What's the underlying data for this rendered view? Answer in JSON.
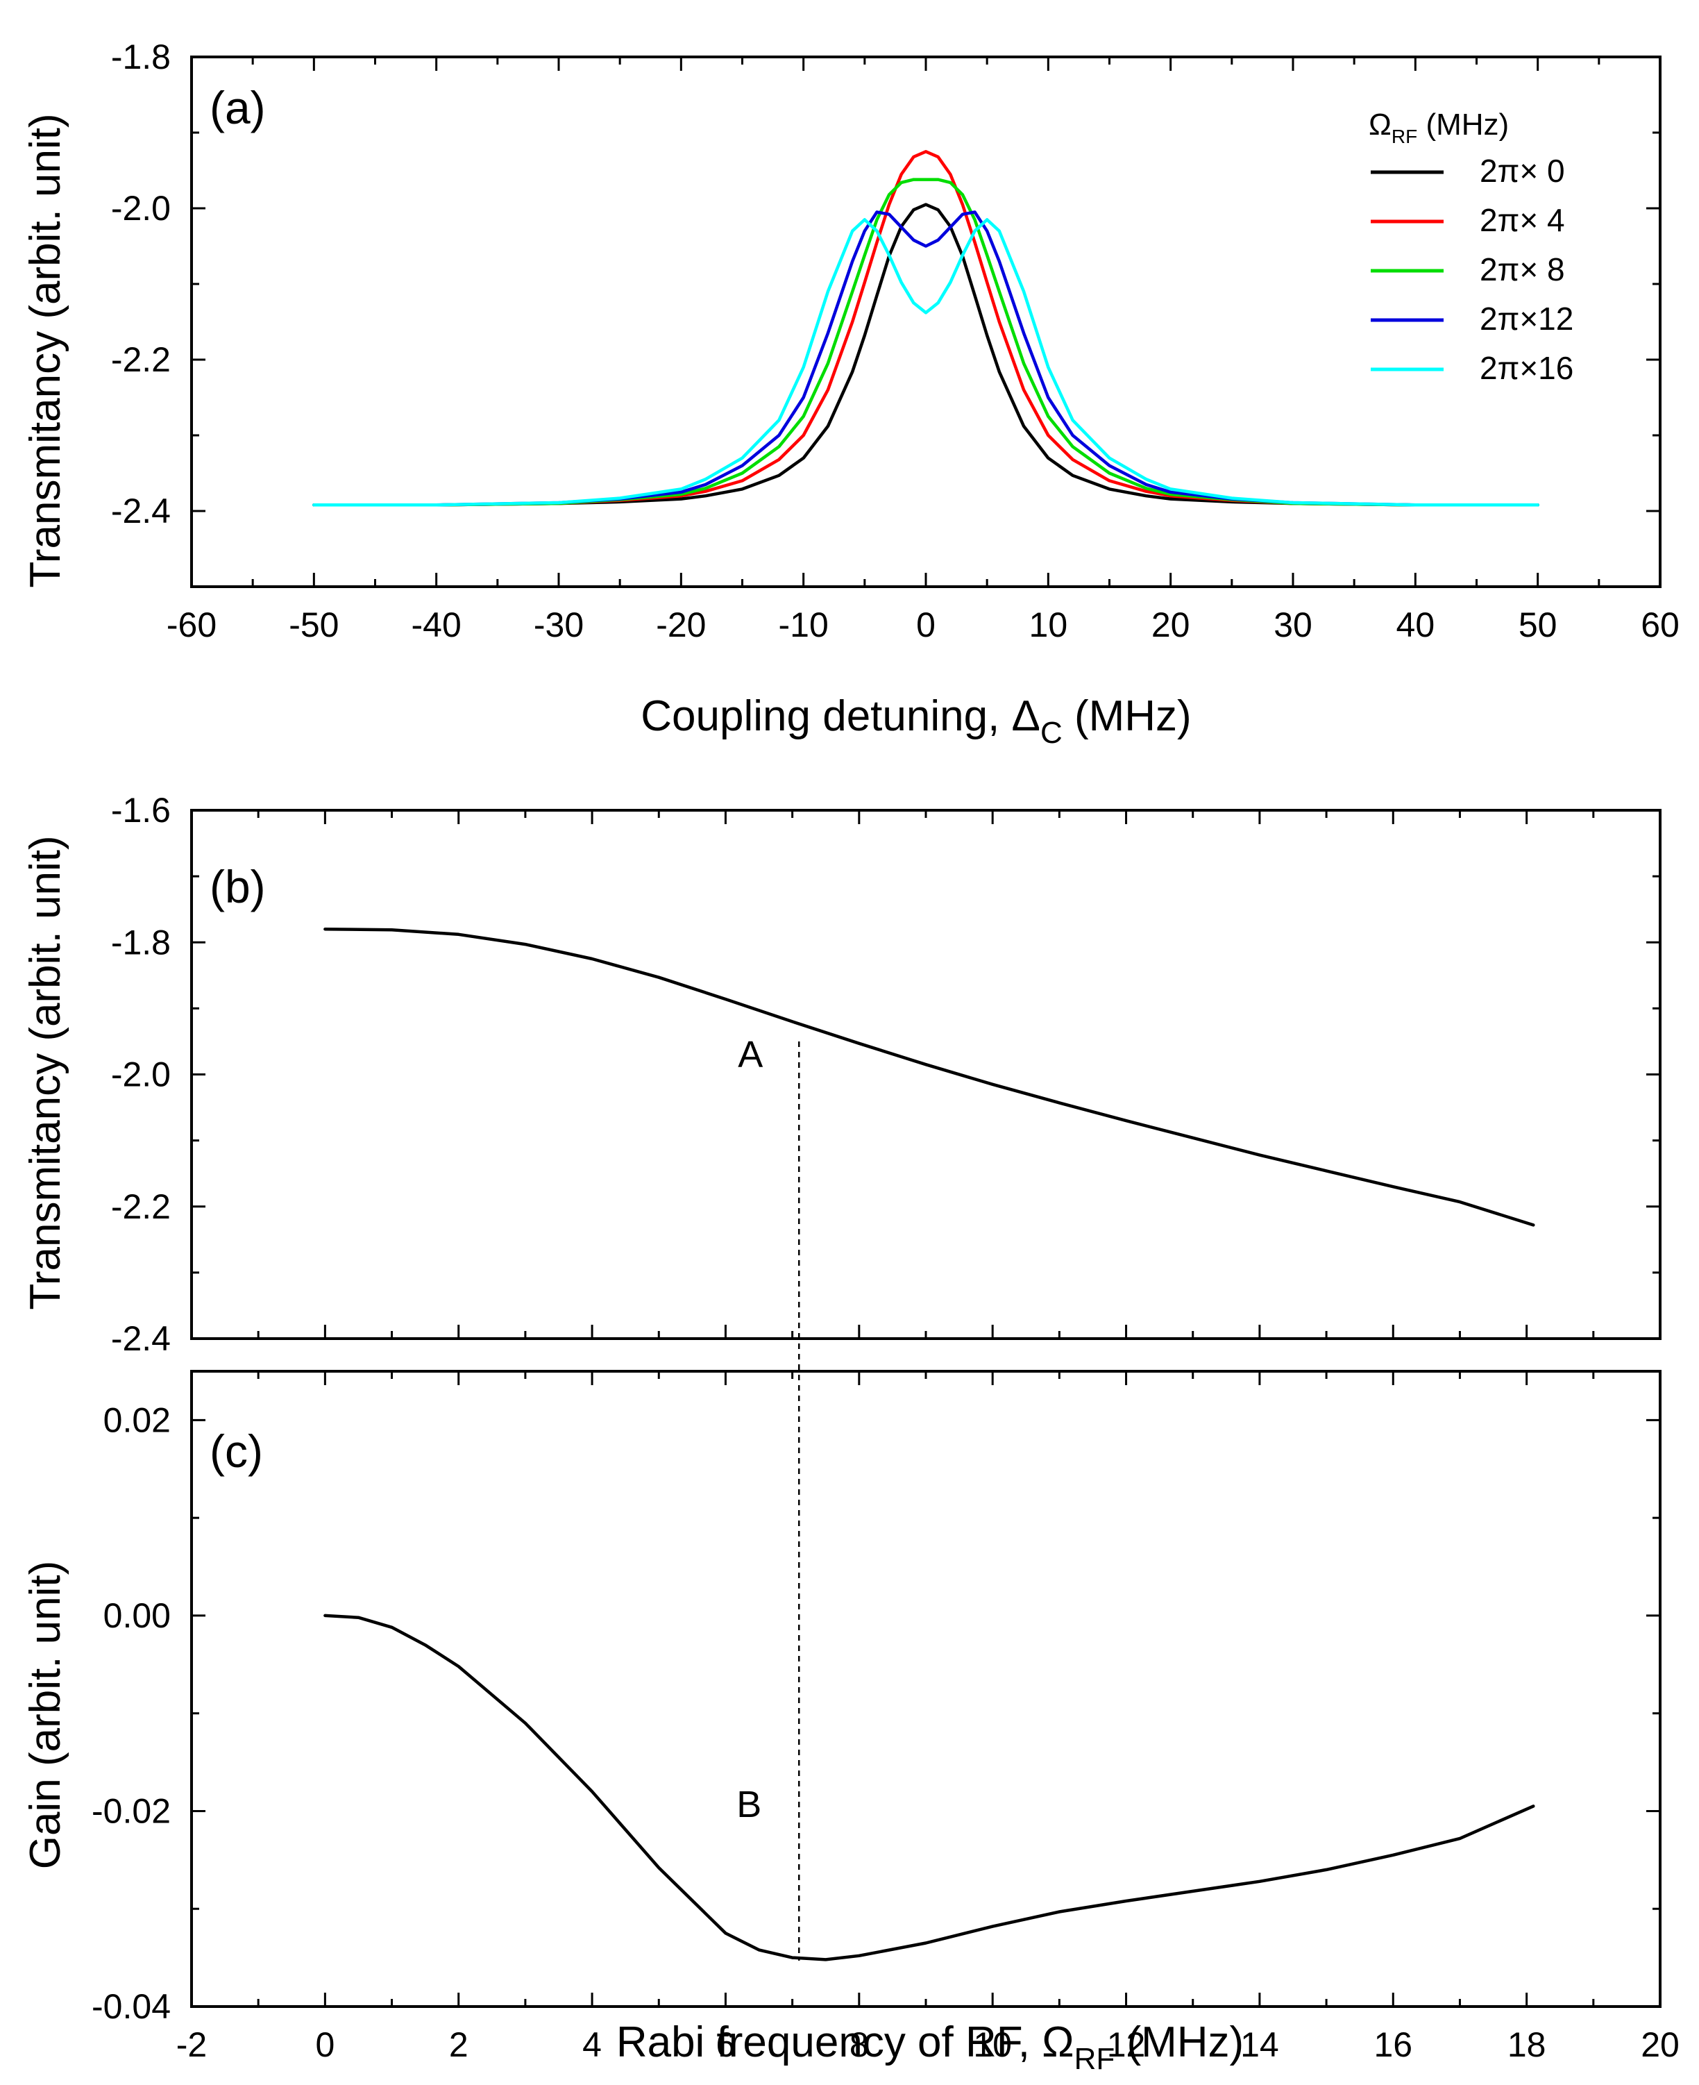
{
  "chart_data": [
    {
      "id": "a",
      "type": "line",
      "panel_label": "(a)",
      "title": "",
      "xlabel": "Coupling detuning, Δ",
      "xlabel_sub": "C",
      "xlabel_tail": " (MHz)",
      "ylabel": "Transmitancy (arbit. unit)",
      "xlim": [
        -60,
        60
      ],
      "ylim": [
        -2.5,
        -1.8
      ],
      "xticks": [
        -60,
        -50,
        -40,
        -30,
        -20,
        -10,
        0,
        10,
        20,
        30,
        40,
        50,
        60
      ],
      "xtick_labels": [
        "-60",
        "-50",
        "-40",
        "-30",
        "-20",
        "-10",
        "0",
        "10",
        "20",
        "30",
        "40",
        "50",
        "60"
      ],
      "yticks": [
        -2.4,
        -2.2,
        -2.0,
        -1.8
      ],
      "ytick_labels": [
        "-2.4",
        "-2.2",
        "-2.0",
        "-1.8"
      ],
      "legend_title": "Ω",
      "legend_title_sub": "RF",
      "legend_title_tail": " (MHz)",
      "legend_position": "top-right",
      "x": [
        -50,
        -40,
        -30,
        -25,
        -20,
        -18,
        -15,
        -12,
        -10,
        -8,
        -6,
        -5,
        -4,
        -3,
        -2,
        -1,
        0,
        1,
        2,
        3,
        4,
        5,
        6,
        8,
        10,
        12,
        15,
        18,
        20,
        25,
        30,
        40,
        50
      ],
      "series": [
        {
          "name": "2π× 0",
          "color": "#000000",
          "values": [
            -2.392,
            -2.392,
            -2.39,
            -2.388,
            -2.384,
            -2.38,
            -2.371,
            -2.353,
            -2.33,
            -2.288,
            -2.216,
            -2.168,
            -2.115,
            -2.063,
            -2.024,
            -2.002,
            -1.995,
            -2.002,
            -2.024,
            -2.063,
            -2.115,
            -2.168,
            -2.216,
            -2.288,
            -2.33,
            -2.353,
            -2.371,
            -2.38,
            -2.384,
            -2.388,
            -2.39,
            -2.392,
            -2.392
          ]
        },
        {
          "name": "2π× 4",
          "color": "#ff0000",
          "values": [
            -2.392,
            -2.392,
            -2.39,
            -2.386,
            -2.38,
            -2.374,
            -2.36,
            -2.332,
            -2.3,
            -2.24,
            -2.15,
            -2.098,
            -2.045,
            -1.995,
            -1.955,
            -1.932,
            -1.925,
            -1.932,
            -1.955,
            -1.995,
            -2.045,
            -2.098,
            -2.15,
            -2.24,
            -2.3,
            -2.332,
            -2.36,
            -2.374,
            -2.38,
            -2.386,
            -2.39,
            -2.392,
            -2.392
          ]
        },
        {
          "name": "2π× 8",
          "color": "#00dd00",
          "values": [
            -2.392,
            -2.392,
            -2.39,
            -2.385,
            -2.378,
            -2.37,
            -2.35,
            -2.315,
            -2.275,
            -2.205,
            -2.11,
            -2.062,
            -2.015,
            -1.982,
            -1.966,
            -1.962,
            -1.962,
            -1.962,
            -1.966,
            -1.982,
            -2.015,
            -2.062,
            -2.11,
            -2.205,
            -2.275,
            -2.315,
            -2.35,
            -2.37,
            -2.378,
            -2.385,
            -2.39,
            -2.392,
            -2.392
          ]
        },
        {
          "name": "2π×12",
          "color": "#0000dd",
          "values": [
            -2.392,
            -2.392,
            -2.389,
            -2.384,
            -2.375,
            -2.365,
            -2.34,
            -2.3,
            -2.25,
            -2.165,
            -2.07,
            -2.03,
            -2.005,
            -2.008,
            -2.025,
            -2.042,
            -2.05,
            -2.042,
            -2.025,
            -2.008,
            -2.005,
            -2.03,
            -2.07,
            -2.165,
            -2.25,
            -2.3,
            -2.34,
            -2.365,
            -2.375,
            -2.384,
            -2.389,
            -2.392,
            -2.392
          ]
        },
        {
          "name": "2π×16",
          "color": "#00ffff",
          "values": [
            -2.392,
            -2.392,
            -2.389,
            -2.383,
            -2.371,
            -2.358,
            -2.33,
            -2.28,
            -2.21,
            -2.11,
            -2.03,
            -2.015,
            -2.03,
            -2.062,
            -2.098,
            -2.125,
            -2.138,
            -2.125,
            -2.098,
            -2.062,
            -2.03,
            -2.015,
            -2.03,
            -2.11,
            -2.21,
            -2.28,
            -2.33,
            -2.358,
            -2.371,
            -2.383,
            -2.389,
            -2.392,
            -2.392
          ]
        }
      ]
    },
    {
      "id": "b",
      "type": "line",
      "panel_label": "(b)",
      "title": "",
      "xlabel": "",
      "ylabel": "Transmitancy (arbit. unit)",
      "xlim": [
        -2,
        20
      ],
      "ylim": [
        -2.4,
        -1.6
      ],
      "yticks": [
        -2.4,
        -2.2,
        -2.0,
        -1.8,
        -1.6
      ],
      "ytick_labels": [
        "-2.4",
        "-2.2",
        "-2.0",
        "-1.8",
        "-1.6"
      ],
      "marker": {
        "label": "A",
        "x": 7.1,
        "y": -1.95
      },
      "series": [
        {
          "name": "transmitancy",
          "color": "#000000",
          "x": [
            0,
            1,
            2,
            3,
            4,
            5,
            6,
            7,
            8,
            9,
            10,
            11,
            12,
            13,
            14,
            15,
            16,
            17,
            18.1
          ],
          "values": [
            -1.78,
            -1.781,
            -1.788,
            -1.803,
            -1.825,
            -1.853,
            -1.886,
            -1.92,
            -1.953,
            -1.985,
            -2.015,
            -2.043,
            -2.07,
            -2.096,
            -2.122,
            -2.146,
            -2.17,
            -2.193,
            -2.228
          ]
        }
      ]
    },
    {
      "id": "c",
      "type": "line",
      "panel_label": "(c)",
      "title": "",
      "xlabel": "Rabi frequency of RF, Ω",
      "xlabel_sub": "RF",
      "xlabel_tail": " (MHz)",
      "ylabel": "Gain (arbit. unit)",
      "xlim": [
        -2,
        20
      ],
      "ylim": [
        -0.04,
        0.025
      ],
      "xticks": [
        -2,
        0,
        2,
        4,
        6,
        8,
        10,
        12,
        14,
        16,
        18,
        20
      ],
      "xtick_labels": [
        "-2",
        "0",
        "2",
        "4",
        "6",
        "8",
        "10",
        "12",
        "14",
        "16",
        "18",
        "20"
      ],
      "yticks": [
        -0.04,
        -0.02,
        0.0,
        0.02
      ],
      "ytick_labels": [
        "-0.04",
        "-0.02",
        "0.00",
        "0.02"
      ],
      "marker": {
        "label": "B",
        "x": 7.1,
        "y": -0.0353
      },
      "series": [
        {
          "name": "gain",
          "color": "#000000",
          "x": [
            0,
            0.5,
            1,
            1.5,
            2,
            3,
            4,
            5,
            6,
            6.5,
            7,
            7.5,
            8,
            9,
            10,
            11,
            12,
            13,
            14,
            15,
            16,
            17,
            18.1
          ],
          "values": [
            0.0,
            -0.0002,
            -0.0012,
            -0.003,
            -0.0052,
            -0.011,
            -0.018,
            -0.0258,
            -0.0325,
            -0.0342,
            -0.035,
            -0.0352,
            -0.0348,
            -0.0335,
            -0.0318,
            -0.0303,
            -0.0292,
            -0.0282,
            -0.0272,
            -0.026,
            -0.0245,
            -0.0228,
            -0.0195
          ]
        }
      ]
    }
  ]
}
